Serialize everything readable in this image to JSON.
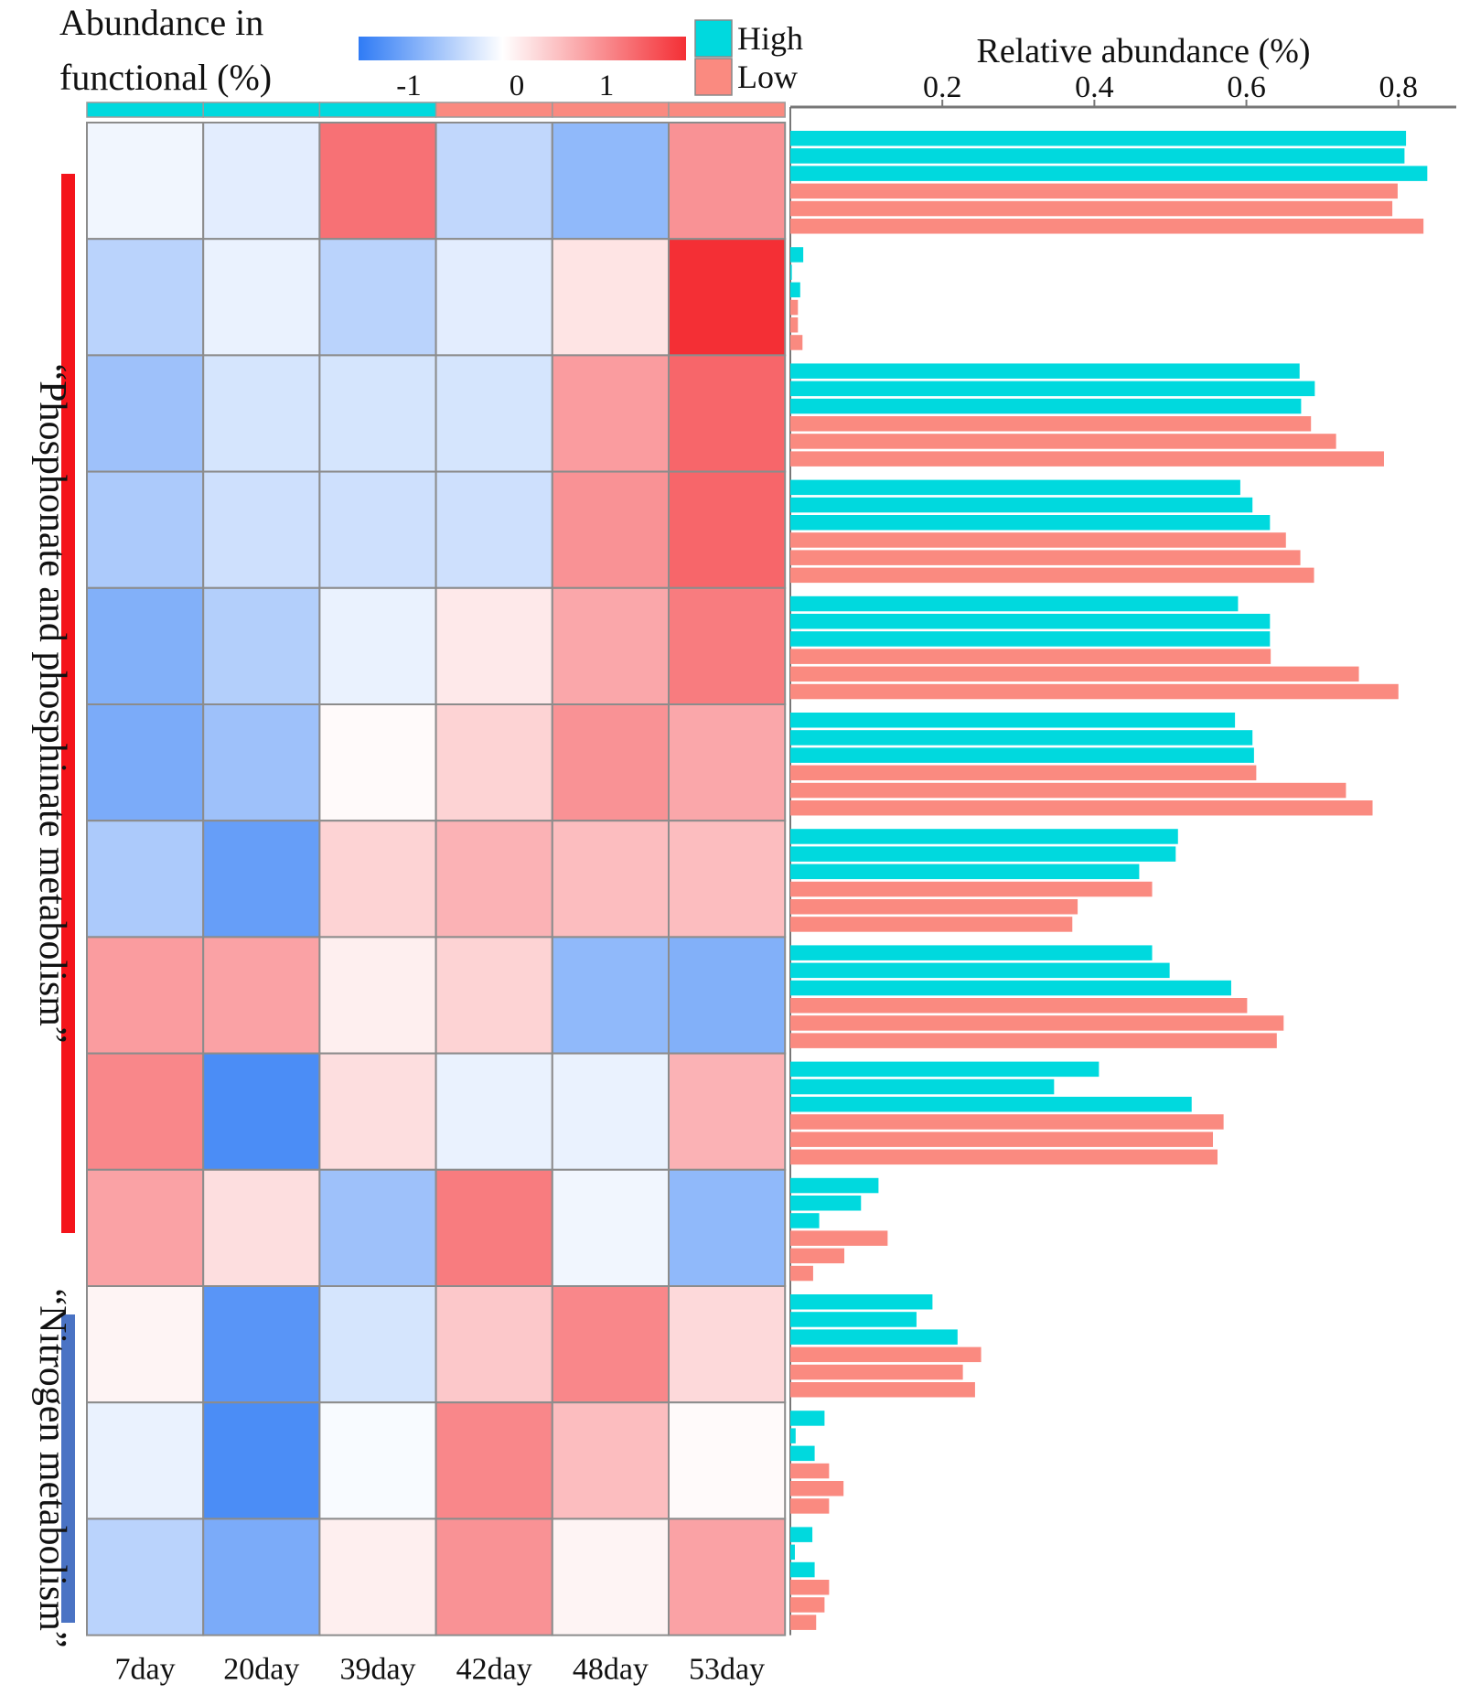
{
  "chart_data": {
    "type": "heatmap",
    "heatmap": {
      "title_lines": [
        "Abundance in",
        "functional (%)"
      ],
      "colorbar": {
        "ticks": [
          -1,
          0,
          1
        ],
        "tick_labels": [
          "-1",
          "0",
          "1"
        ],
        "range": [
          -1.5,
          1.9
        ],
        "low_color": "#2f7bf5",
        "mid_color": "#ffffff",
        "high_color": "#f42f35"
      },
      "columns": [
        "7day",
        "20day",
        "39day",
        "42day",
        "48day",
        "53day"
      ],
      "column_groups": [
        "High",
        "High",
        "High",
        "Low",
        "Low",
        "Low"
      ],
      "values": [
        [
          -0.1,
          -0.2,
          1.3,
          -0.45,
          -0.8,
          1.0
        ],
        [
          -0.5,
          -0.15,
          -0.5,
          -0.2,
          0.25,
          1.9
        ],
        [
          -0.7,
          -0.3,
          -0.3,
          -0.3,
          0.9,
          1.4
        ],
        [
          -0.6,
          -0.35,
          -0.35,
          -0.35,
          1.0,
          1.4
        ],
        [
          -0.9,
          -0.55,
          -0.15,
          0.2,
          0.8,
          1.2
        ],
        [
          -0.95,
          -0.7,
          0.05,
          0.4,
          1.0,
          0.8
        ],
        [
          -0.6,
          -1.1,
          0.4,
          0.7,
          0.6,
          0.6
        ],
        [
          0.9,
          0.85,
          0.15,
          0.4,
          -0.8,
          -0.9
        ],
        [
          1.1,
          -1.3,
          0.3,
          -0.15,
          -0.15,
          0.7
        ],
        [
          0.85,
          0.3,
          -0.7,
          1.2,
          -0.1,
          -0.8
        ],
        [
          0.1,
          -1.2,
          -0.3,
          0.5,
          1.1,
          0.35
        ],
        [
          -0.15,
          -1.3,
          -0.05,
          1.1,
          0.6,
          0.05
        ],
        [
          -0.5,
          -0.95,
          0.15,
          1.0,
          0.1,
          0.85
        ]
      ]
    },
    "legend": [
      {
        "name": "High",
        "color": "#00d9de"
      },
      {
        "name": "Low",
        "color": "#fa8a80"
      }
    ],
    "bars": {
      "type": "bar",
      "orientation": "horizontal",
      "xlabel": "Relative abundance (%)",
      "xticks": [
        0.2,
        0.4,
        0.6,
        0.8
      ],
      "xtick_labels": [
        "0.2",
        "0.4",
        "0.6",
        "0.8"
      ],
      "xlim": [
        0,
        0.84
      ],
      "series": [
        {
          "name": "High",
          "color": "#00d9de",
          "values": [
            [
              0.81,
              0.808,
              0.838
            ],
            [
              0.017,
              0.002,
              0.013
            ],
            [
              0.67,
              0.69,
              0.672
            ],
            [
              0.592,
              0.608,
              0.631
            ],
            [
              0.589,
              0.631,
              0.631
            ],
            [
              0.585,
              0.608,
              0.61
            ],
            [
              0.51,
              0.507,
              0.459
            ],
            [
              0.476,
              0.499,
              0.58
            ],
            [
              0.406,
              0.347,
              0.528
            ],
            [
              0.116,
              0.093,
              0.038
            ],
            [
              0.187,
              0.166,
              0.22
            ],
            [
              0.045,
              0.007,
              0.032
            ],
            [
              0.029,
              0.006,
              0.032
            ]
          ]
        },
        {
          "name": "Low",
          "color": "#fa8a80",
          "values": [
            [
              0.799,
              0.792,
              0.833
            ],
            [
              0.01,
              0.01,
              0.016
            ],
            [
              0.685,
              0.718,
              0.781
            ],
            [
              0.652,
              0.671,
              0.689
            ],
            [
              0.632,
              0.748,
              0.8
            ],
            [
              0.613,
              0.731,
              0.766
            ],
            [
              0.476,
              0.378,
              0.371
            ],
            [
              0.601,
              0.649,
              0.64
            ],
            [
              0.57,
              0.556,
              0.562
            ],
            [
              0.128,
              0.071,
              0.03
            ],
            [
              0.251,
              0.227,
              0.243
            ],
            [
              0.051,
              0.07,
              0.051
            ],
            [
              0.051,
              0.045,
              0.034
            ]
          ]
        }
      ]
    },
    "groups": [
      {
        "label": "“Phosphonate and phosphinate metabolism”",
        "color": "#f4141b"
      },
      {
        "label": "“Nitrogen metabolism”",
        "color": "#4a73c4"
      }
    ]
  }
}
